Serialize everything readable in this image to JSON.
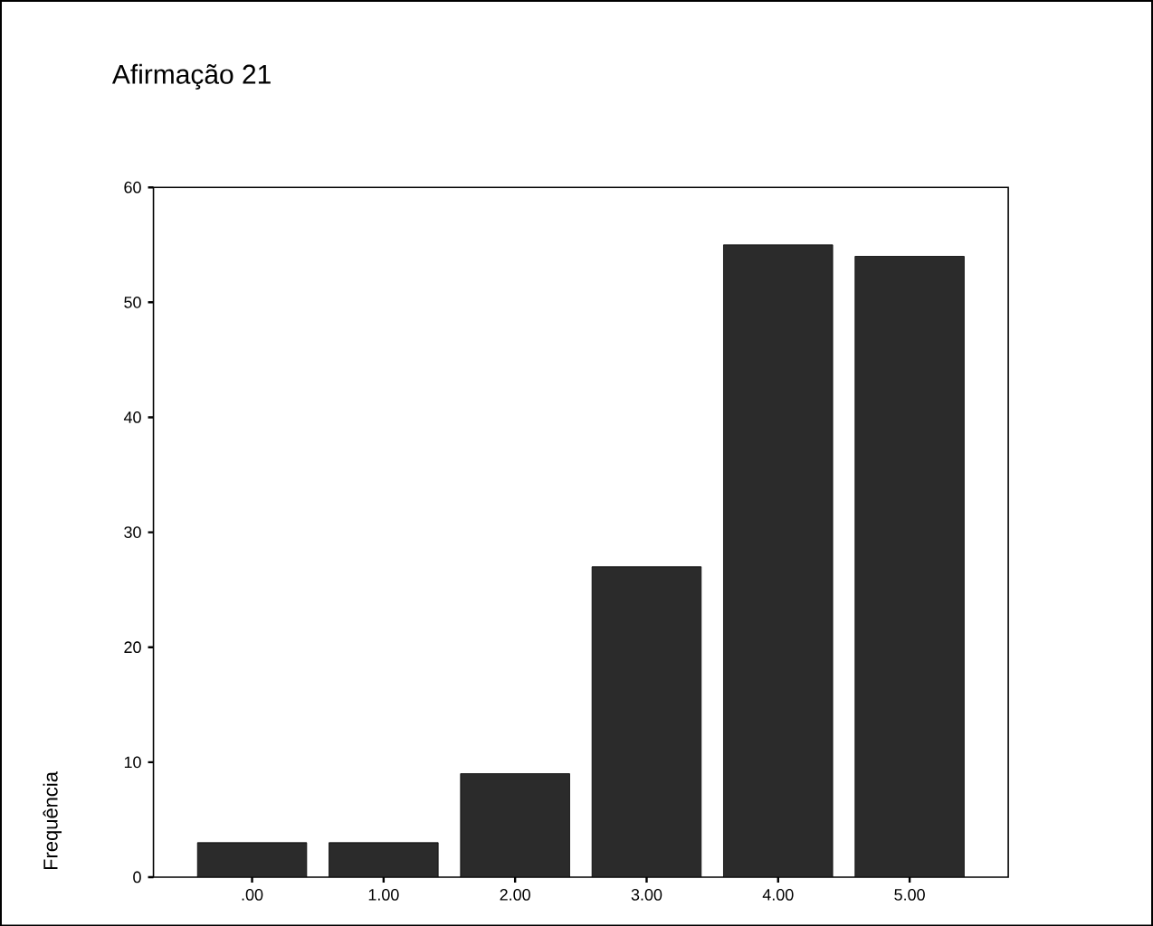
{
  "chart_data": {
    "type": "bar",
    "title": "Afirmação 21",
    "ylabel": "Frequência",
    "categories": [
      ".00",
      "1.00",
      "2.00",
      "3.00",
      "4.00",
      "5.00"
    ],
    "values": [
      3,
      3,
      9,
      27,
      55,
      54
    ],
    "color": "#2b2b2b",
    "ylim": [
      0,
      60
    ],
    "yticks": [
      0,
      10,
      20,
      30,
      40,
      50,
      60
    ],
    "grid": false
  }
}
